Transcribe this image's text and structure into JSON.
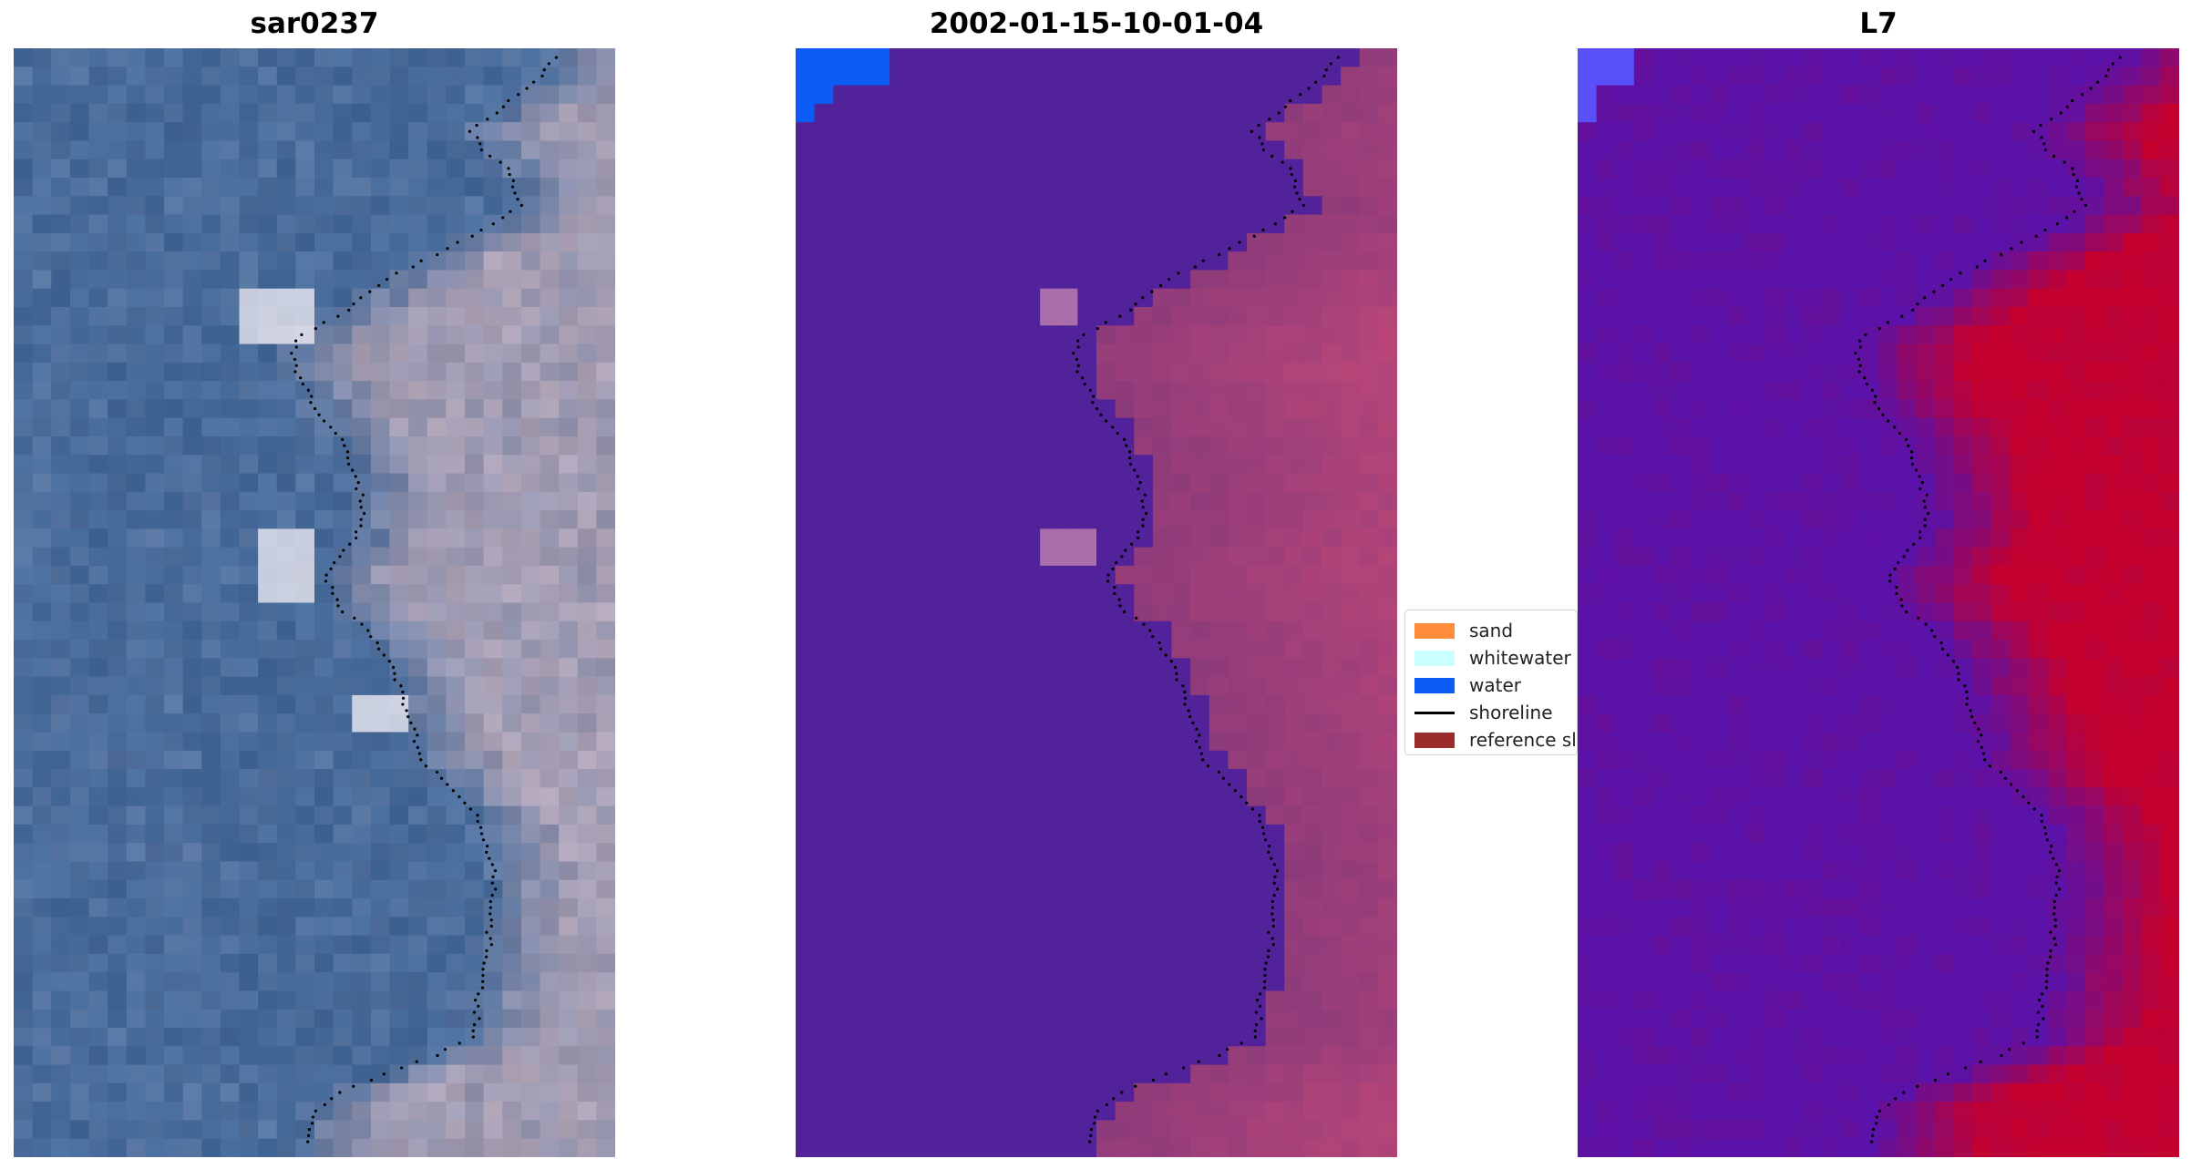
{
  "panels": [
    {
      "id": "rgb",
      "title": "sar0237",
      "mode": "rgb",
      "pixel_grid": [
        32,
        60
      ]
    },
    {
      "id": "classified",
      "title": "2002-01-15-10-01-04",
      "mode": "classified",
      "pixel_grid": [
        32,
        60
      ]
    },
    {
      "id": "index",
      "title": "L7",
      "mode": "index",
      "pixel_grid": [
        32,
        60
      ]
    }
  ],
  "legend": {
    "items": [
      {
        "label": "sand",
        "kind": "patch",
        "color": "#ff8c3a"
      },
      {
        "label": "whitewater",
        "kind": "patch",
        "color": "#c8ffff"
      },
      {
        "label": "water",
        "kind": "patch",
        "color": "#0a5cf5"
      },
      {
        "label": "shoreline",
        "kind": "line",
        "color": "#000000"
      },
      {
        "label": "reference sl",
        "kind": "patch",
        "color": "#9b2c2c"
      }
    ]
  },
  "colors": {
    "water_class": "#0a5cf5",
    "land_overlay": "#8a3a7a",
    "background_class": "#52229a",
    "index_low": "#5a12a8",
    "index_high": "#c4002e",
    "rgb_sea": "#466a9a",
    "rgb_land": "#b8a8b8",
    "shoreline": "#000000"
  },
  "shoreline_profile": [
    0.9,
    0.88,
    0.84,
    0.8,
    0.76,
    0.78,
    0.82,
    0.83,
    0.84,
    0.8,
    0.74,
    0.68,
    0.62,
    0.58,
    0.54,
    0.48,
    0.46,
    0.47,
    0.49,
    0.5,
    0.53,
    0.55,
    0.56,
    0.57,
    0.58,
    0.58,
    0.57,
    0.54,
    0.52,
    0.53,
    0.55,
    0.59,
    0.61,
    0.63,
    0.64,
    0.65,
    0.66,
    0.67,
    0.68,
    0.71,
    0.74,
    0.77,
    0.78,
    0.79,
    0.8,
    0.8,
    0.79,
    0.79,
    0.79,
    0.78,
    0.78,
    0.77,
    0.77,
    0.76,
    0.7,
    0.62,
    0.54,
    0.5,
    0.49,
    0.49
  ]
}
